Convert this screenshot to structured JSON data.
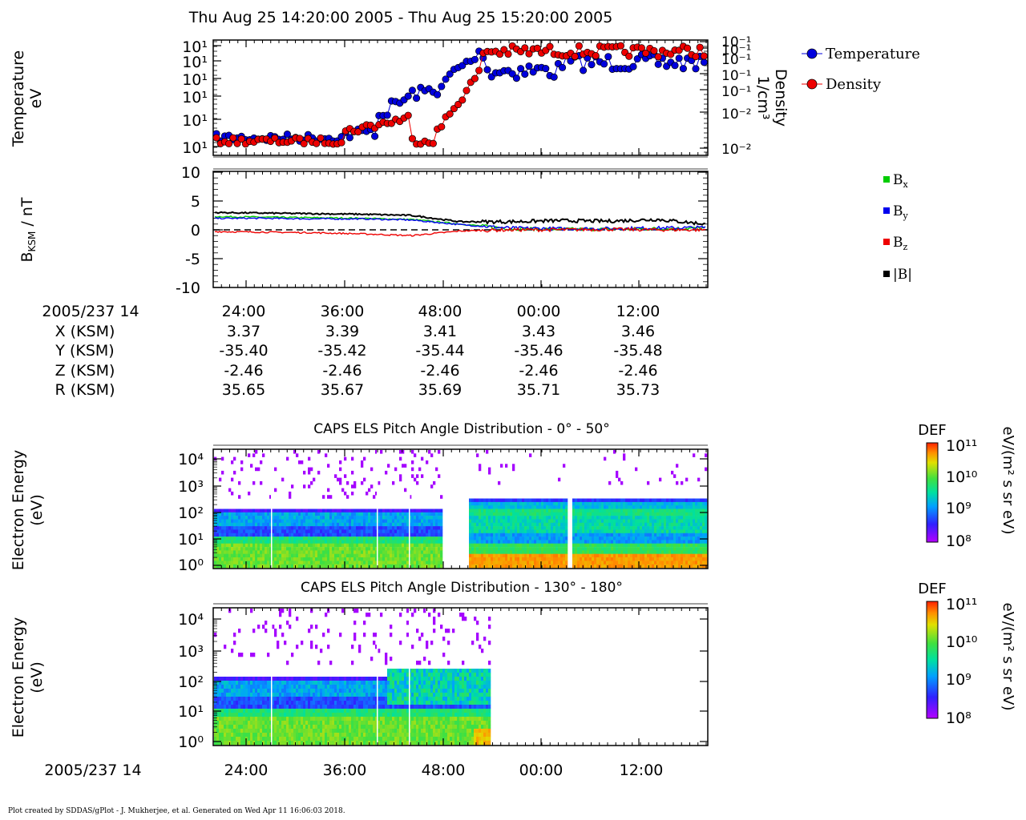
{
  "header": {
    "title": "Thu Aug 25 14:20:00 2005 - Thu Aug 25 15:20:00 2005"
  },
  "panel1": {
    "ylabel_line1": "Temperature",
    "ylabel_line2": "eV",
    "y_tick_labels": [
      "10¹",
      "10¹",
      "10¹",
      "10¹",
      "10¹",
      "10¹"
    ],
    "right_label_line1": "Density",
    "right_label_line2": "1/cm³",
    "right_tick_labels": [
      "10⁻¹",
      "10⁻¹",
      "10⁻¹",
      "10⁻¹",
      "10⁻¹",
      "10⁻²",
      "10⁻²"
    ],
    "legend": [
      "Temperature",
      "Density"
    ]
  },
  "panel2": {
    "ylabel": "B_KSM / nT",
    "y_ticks": [
      "10",
      "5",
      "0",
      "-5",
      "-10"
    ],
    "legend": [
      "Bx",
      "By",
      "Bz",
      "|B|"
    ]
  },
  "ephemeris": {
    "date_label": "2005/237 14",
    "row_labels": [
      "X (KSM)",
      "Y (KSM)",
      "Z (KSM)",
      "R (KSM)"
    ],
    "times": [
      "24:00",
      "36:00",
      "48:00",
      "00:00",
      "12:00"
    ],
    "x": [
      "3.37",
      "3.39",
      "3.41",
      "3.43",
      "3.46"
    ],
    "y": [
      "-35.40",
      "-35.42",
      "-35.44",
      "-35.46",
      "-35.48"
    ],
    "z": [
      "-2.46",
      "-2.46",
      "-2.46",
      "-2.46",
      "-2.46"
    ],
    "r": [
      "35.65",
      "35.67",
      "35.69",
      "35.71",
      "35.73"
    ]
  },
  "spectrogram1": {
    "title": "CAPS ELS Pitch Angle Distribution - 0° - 50°",
    "ylabel_line1": "Electron Energy",
    "ylabel_line2": "(eV)",
    "y_ticks": [
      "10⁴",
      "10³",
      "10²",
      "10¹",
      "10⁰"
    ],
    "colorbar_title": "DEF",
    "colorbar_ticks": [
      "10¹¹",
      "10¹⁰",
      "10⁹",
      "10⁸"
    ],
    "colorbar_units": "eV/(m² s sr eV)"
  },
  "spectrogram2": {
    "title": "CAPS ELS Pitch Angle Distribution - 130° - 180°",
    "ylabel_line1": "Electron Energy",
    "ylabel_line2": "(eV)",
    "y_ticks": [
      "10⁴",
      "10³",
      "10²",
      "10¹",
      "10⁰"
    ],
    "colorbar_title": "DEF",
    "colorbar_ticks": [
      "10¹¹",
      "10¹⁰",
      "10⁹",
      "10⁸"
    ],
    "colorbar_units": "eV/(m² s sr eV)"
  },
  "bottom_axis": {
    "date_label": "2005/237 14",
    "times": [
      "24:00",
      "36:00",
      "48:00",
      "00:00",
      "12:00"
    ]
  },
  "footer": {
    "text": "Plot created by SDDAS/gPlot - J. Mukherjee, et al.  Generated on Wed Apr 11 16:06:03 2018."
  },
  "colors": {
    "temperature": "#0000dd",
    "density": "#ee0000",
    "bx": "#00cc00",
    "by": "#0000ee",
    "bz": "#ee0000",
    "bmag": "#000000"
  },
  "chart_data": [
    {
      "type": "line",
      "title": "",
      "xlabel": "",
      "ylabel": "Temperature eV",
      "y2label": "Density 1/cm³",
      "x_ticks": [
        "24:00",
        "36:00",
        "48:00",
        "00:00",
        "12:00"
      ],
      "series": [
        {
          "name": "Temperature",
          "description": "low and flat until ~36:00, rises strongly after ~48:00, then fluctuates at a high level"
        },
        {
          "name": "Density",
          "description": "low and flat until ~36:00, steady increase to ~47:00, dip, sharp rise at ~52:00, then high level"
        }
      ]
    },
    {
      "type": "line",
      "title": "",
      "ylabel": "B_KSM / nT",
      "ylim": [
        -10,
        10
      ],
      "x_ticks": [
        "24:00",
        "36:00",
        "48:00",
        "00:00",
        "12:00"
      ],
      "series": [
        {
          "name": "Bx",
          "values": [
            2.3,
            2.2,
            2.1,
            2.0,
            1.8,
            1.0,
            0.2,
            0.1,
            0.1,
            0.2,
            0.3
          ]
        },
        {
          "name": "By",
          "values": [
            2.0,
            2.0,
            1.9,
            1.9,
            1.7,
            0.9,
            0.3,
            0.2,
            0.2,
            0.3,
            0.4
          ]
        },
        {
          "name": "Bz",
          "values": [
            -0.3,
            -0.4,
            -0.5,
            -0.7,
            -1.0,
            -0.2,
            0.0,
            0.0,
            0.1,
            0.0,
            0.0
          ]
        },
        {
          "name": "|B|",
          "values": [
            3.0,
            2.9,
            2.8,
            2.7,
            2.5,
            1.4,
            1.4,
            1.6,
            1.5,
            1.8,
            1.0
          ]
        }
      ]
    },
    {
      "type": "heatmap",
      "title": "CAPS ELS Pitch Angle Distribution - 0° - 50°",
      "ylabel": "Electron Energy (eV)",
      "y_scale": "log",
      "ylim": [
        1,
        20000
      ],
      "colorbar": "DEF eV/(m² s sr eV)",
      "clim": [
        100000000.0,
        100000000000.0
      ]
    },
    {
      "type": "heatmap",
      "title": "CAPS ELS Pitch Angle Distribution - 130° - 180°",
      "ylabel": "Electron Energy (eV)",
      "y_scale": "log",
      "ylim": [
        1,
        20000
      ],
      "colorbar": "DEF eV/(m² s sr eV)",
      "clim": [
        100000000.0,
        100000000000.0
      ]
    }
  ]
}
